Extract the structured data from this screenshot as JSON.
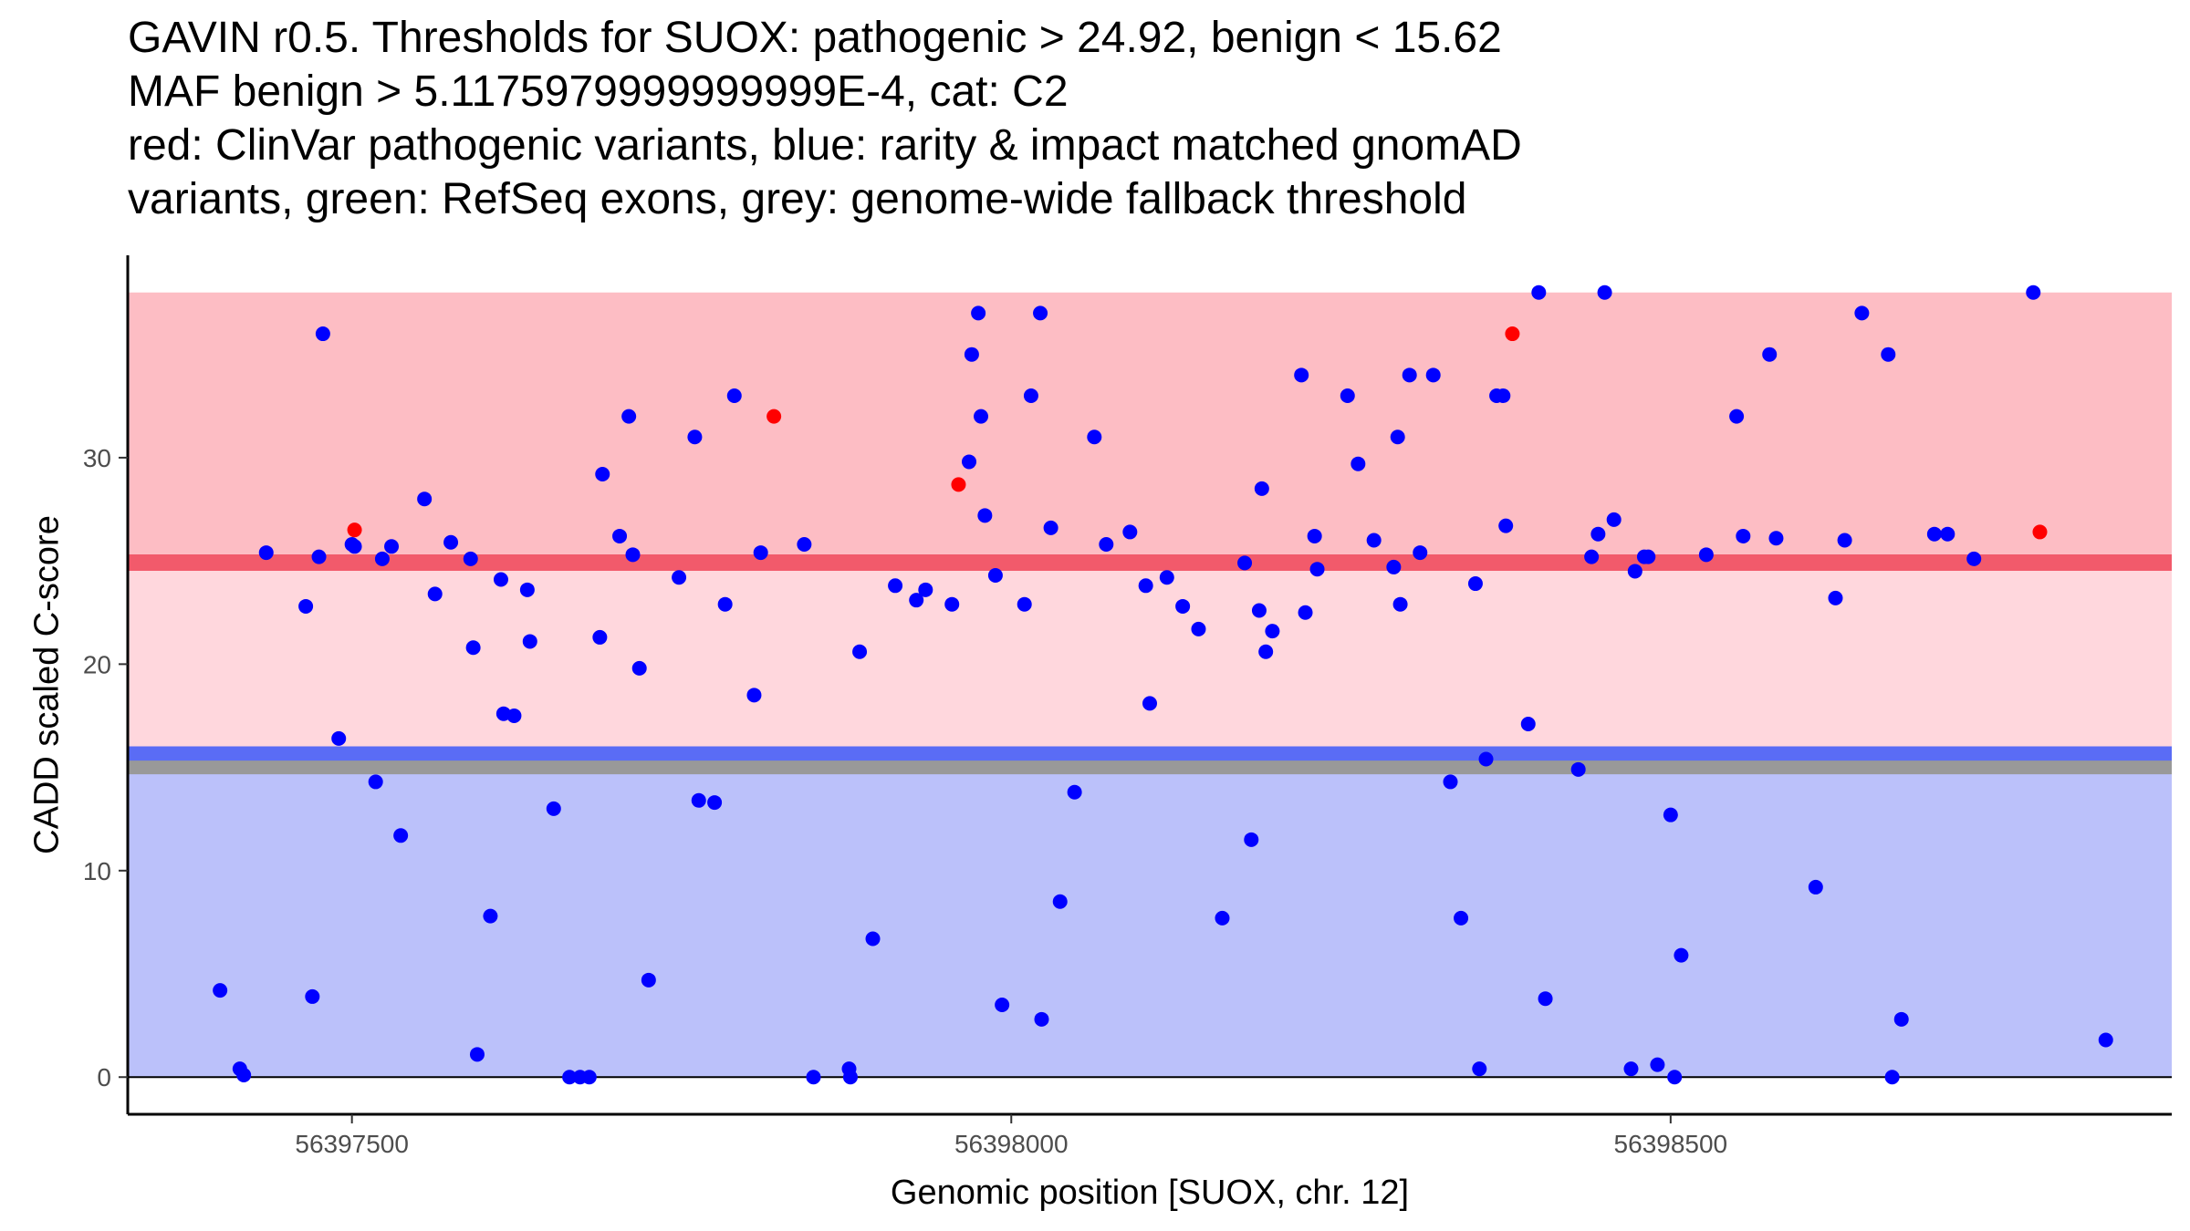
{
  "chart_data": {
    "type": "scatter",
    "title_lines": [
      "GAVIN r0.5. Thresholds for SUOX: pathogenic > 24.92, benign < 15.62",
      "MAF benign > 5.1175979999999999E-4, cat: C2",
      "red: ClinVar pathogenic variants, blue: rarity & impact matched gnomAD",
      "variants, green: RefSeq exons, grey: genome-wide fallback threshold"
    ],
    "xlabel": "Genomic position [SUOX, chr. 12]",
    "ylabel": "CADD scaled C-score",
    "xlim": [
      56397330,
      56398880
    ],
    "ylim": [
      -1.8,
      39.8
    ],
    "xticks": [
      56397500,
      56398000,
      56398500
    ],
    "xtick_labels": [
      "56397500",
      "56398000",
      "56398500"
    ],
    "yticks": [
      0,
      10,
      20,
      30
    ],
    "ytick_labels": [
      "0",
      "10",
      "20",
      "30"
    ],
    "thresholds": {
      "pathogenic": 24.92,
      "benign": 15.62,
      "fallback": 15,
      "max_score": 38
    },
    "colors": {
      "pathogenic_region": "#fdbdc4",
      "between_region": "#ffd7dd",
      "benign_region": "#bbc1fa",
      "pathogenic_line": "#f25a6b",
      "benign_line": "#5a6cf5",
      "fallback_line": "#999999",
      "clinvar_point": "#ff0000",
      "gnomad_point": "#0000ff"
    },
    "series": [
      {
        "name": "ClinVar pathogenic",
        "color": "#ff0000",
        "points": [
          [
            56397502,
            26.5
          ],
          [
            56397820,
            32
          ],
          [
            56397960,
            28.7
          ],
          [
            56398380,
            36
          ],
          [
            56398780,
            26.4
          ]
        ]
      },
      {
        "name": "gnomAD matched",
        "color": "#0000ff",
        "points": [
          [
            56397400,
            4.2
          ],
          [
            56397415,
            0.4
          ],
          [
            56397418,
            0.1
          ],
          [
            56397435,
            25.4
          ],
          [
            56397465,
            22.8
          ],
          [
            56397470,
            3.9
          ],
          [
            56397475,
            25.2
          ],
          [
            56397478,
            36
          ],
          [
            56397490,
            16.4
          ],
          [
            56397500,
            25.8
          ],
          [
            56397502,
            25.7
          ],
          [
            56397518,
            14.3
          ],
          [
            56397523,
            25.1
          ],
          [
            56397530,
            25.7
          ],
          [
            56397537,
            11.7
          ],
          [
            56397555,
            28
          ],
          [
            56397563,
            23.4
          ],
          [
            56397575,
            25.9
          ],
          [
            56397590,
            25.1
          ],
          [
            56397592,
            20.8
          ],
          [
            56397595,
            1.1
          ],
          [
            56397605,
            7.8
          ],
          [
            56397613,
            24.1
          ],
          [
            56397615,
            17.6
          ],
          [
            56397623,
            17.5
          ],
          [
            56397633,
            23.6
          ],
          [
            56397635,
            21.1
          ],
          [
            56397653,
            13
          ],
          [
            56397665,
            0
          ],
          [
            56397673,
            0
          ],
          [
            56397680,
            0
          ],
          [
            56397688,
            21.3
          ],
          [
            56397690,
            29.2
          ],
          [
            56397703,
            26.2
          ],
          [
            56397710,
            32
          ],
          [
            56397713,
            25.3
          ],
          [
            56397718,
            19.8
          ],
          [
            56397725,
            4.7
          ],
          [
            56397748,
            24.2
          ],
          [
            56397760,
            31
          ],
          [
            56397763,
            13.4
          ],
          [
            56397775,
            13.3
          ],
          [
            56397783,
            22.9
          ],
          [
            56397790,
            33
          ],
          [
            56397805,
            18.5
          ],
          [
            56397810,
            25.4
          ],
          [
            56397843,
            25.8
          ],
          [
            56397850,
            0
          ],
          [
            56397877,
            0.4
          ],
          [
            56397878,
            0
          ],
          [
            56397885,
            20.6
          ],
          [
            56397895,
            6.7
          ],
          [
            56397912,
            23.8
          ],
          [
            56397928,
            23.1
          ],
          [
            56397935,
            23.6
          ],
          [
            56397955,
            22.9
          ],
          [
            56397968,
            29.8
          ],
          [
            56397970,
            35
          ],
          [
            56397975,
            37
          ],
          [
            56397977,
            32
          ],
          [
            56397980,
            27.2
          ],
          [
            56397988,
            24.3
          ],
          [
            56397993,
            3.5
          ],
          [
            56398010,
            22.9
          ],
          [
            56398015,
            33
          ],
          [
            56398022,
            37
          ],
          [
            56398023,
            2.8
          ],
          [
            56398030,
            26.6
          ],
          [
            56398037,
            8.5
          ],
          [
            56398048,
            13.8
          ],
          [
            56398063,
            31
          ],
          [
            56398072,
            25.8
          ],
          [
            56398090,
            26.4
          ],
          [
            56398102,
            23.8
          ],
          [
            56398105,
            18.1
          ],
          [
            56398118,
            24.2
          ],
          [
            56398130,
            22.8
          ],
          [
            56398142,
            21.7
          ],
          [
            56398160,
            7.7
          ],
          [
            56398177,
            24.9
          ],
          [
            56398182,
            11.5
          ],
          [
            56398188,
            22.6
          ],
          [
            56398190,
            28.5
          ],
          [
            56398193,
            20.6
          ],
          [
            56398198,
            21.6
          ],
          [
            56398220,
            34
          ],
          [
            56398223,
            22.5
          ],
          [
            56398230,
            26.2
          ],
          [
            56398232,
            24.6
          ],
          [
            56398255,
            33
          ],
          [
            56398263,
            29.7
          ],
          [
            56398275,
            26
          ],
          [
            56398290,
            24.7
          ],
          [
            56398293,
            31
          ],
          [
            56398295,
            22.9
          ],
          [
            56398302,
            34
          ],
          [
            56398310,
            25.4
          ],
          [
            56398320,
            34
          ],
          [
            56398333,
            14.3
          ],
          [
            56398341,
            7.7
          ],
          [
            56398352,
            23.9
          ],
          [
            56398355,
            0.4
          ],
          [
            56398360,
            15.4
          ],
          [
            56398368,
            33
          ],
          [
            56398373,
            33
          ],
          [
            56398375,
            26.7
          ],
          [
            56398392,
            17.1
          ],
          [
            56398400,
            38
          ],
          [
            56398405,
            3.8
          ],
          [
            56398430,
            14.9
          ],
          [
            56398440,
            25.2
          ],
          [
            56398445,
            26.3
          ],
          [
            56398450,
            38
          ],
          [
            56398457,
            27
          ],
          [
            56398470,
            0.4
          ],
          [
            56398473,
            24.5
          ],
          [
            56398480,
            25.2
          ],
          [
            56398483,
            25.2
          ],
          [
            56398490,
            0.6
          ],
          [
            56398500,
            12.7
          ],
          [
            56398503,
            0
          ],
          [
            56398508,
            5.9
          ],
          [
            56398527,
            25.3
          ],
          [
            56398550,
            32
          ],
          [
            56398555,
            26.2
          ],
          [
            56398575,
            35
          ],
          [
            56398580,
            26.1
          ],
          [
            56398610,
            9.2
          ],
          [
            56398625,
            23.2
          ],
          [
            56398632,
            26
          ],
          [
            56398645,
            37
          ],
          [
            56398665,
            35
          ],
          [
            56398668,
            0
          ],
          [
            56398675,
            2.8
          ],
          [
            56398700,
            26.3
          ],
          [
            56398710,
            26.3
          ],
          [
            56398730,
            25.1
          ],
          [
            56398775,
            38
          ],
          [
            56398830,
            1.8
          ]
        ]
      }
    ]
  }
}
